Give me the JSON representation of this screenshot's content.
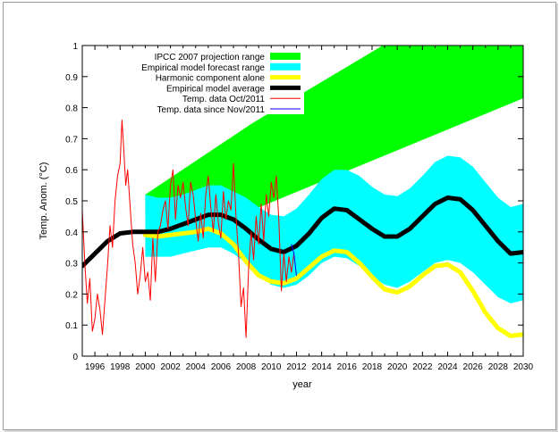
{
  "chart_data": {
    "type": "line",
    "title": "",
    "xlabel": "year",
    "ylabel": "Temp. Anom. (°C)",
    "xlim": [
      1995,
      2030
    ],
    "ylim": [
      0,
      1
    ],
    "x_ticks": [
      "1996",
      "1998",
      "2000",
      "2002",
      "2004",
      "2006",
      "2008",
      "2010",
      "2012",
      "2014",
      "2016",
      "2018",
      "2020",
      "2022",
      "2024",
      "2026",
      "2028",
      "2030"
    ],
    "y_ticks": [
      "0",
      "0.1",
      "0.2",
      "0.3",
      "0.4",
      "0.5",
      "0.6",
      "0.7",
      "0.8",
      "0.9",
      "1"
    ],
    "grid": false,
    "legend_position": "top-left",
    "legend": [
      {
        "label": "IPCC 2007 projection range",
        "color": "#00ff00",
        "style": "band"
      },
      {
        "label": "Empirical model forecast range",
        "color": "#00ffff",
        "style": "band"
      },
      {
        "label": "Harmonic component alone",
        "color": "#ffff00",
        "style": "thick-line"
      },
      {
        "label": "Empirical model average",
        "color": "#000000",
        "style": "thick-line"
      },
      {
        "label": "Temp. data Oct/2011",
        "color": "#ff0000",
        "style": "line"
      },
      {
        "label": "Temp. data since Nov/2011",
        "color": "#0000ff",
        "style": "line"
      }
    ],
    "series": [
      {
        "name": "IPCC 2007 projection range",
        "kind": "band",
        "x": [
          2000,
          2008.5,
          2030
        ],
        "lower": [
          0.45,
          0.47,
          0.83
        ],
        "upper": [
          0.52,
          0.75,
          1.27
        ]
      },
      {
        "name": "Empirical model average",
        "kind": "line",
        "x": [
          1995,
          1996,
          1997,
          1998,
          1999,
          2000,
          2001,
          2002,
          2003,
          2004,
          2005,
          2006,
          2007,
          2008,
          2009,
          2010,
          2011,
          2012,
          2013,
          2014,
          2015,
          2016,
          2017,
          2018,
          2019,
          2020,
          2021,
          2022,
          2023,
          2024,
          2025,
          2026,
          2027,
          2028,
          2029,
          2030
        ],
        "y": [
          0.29,
          0.33,
          0.37,
          0.395,
          0.4,
          0.4,
          0.4,
          0.41,
          0.425,
          0.44,
          0.455,
          0.455,
          0.44,
          0.41,
          0.375,
          0.345,
          0.335,
          0.355,
          0.395,
          0.445,
          0.475,
          0.47,
          0.44,
          0.41,
          0.385,
          0.385,
          0.41,
          0.45,
          0.49,
          0.51,
          0.505,
          0.47,
          0.42,
          0.37,
          0.33,
          0.335
        ]
      },
      {
        "name": "Empirical model forecast range",
        "kind": "band",
        "x": [
          2000,
          2001,
          2002,
          2003,
          2004,
          2005,
          2006,
          2007,
          2008,
          2009,
          2010,
          2011,
          2012,
          2013,
          2014,
          2015,
          2016,
          2017,
          2018,
          2019,
          2020,
          2021,
          2022,
          2023,
          2024,
          2025,
          2026,
          2027,
          2028,
          2029,
          2030
        ],
        "lower": [
          0.32,
          0.32,
          0.32,
          0.33,
          0.34,
          0.35,
          0.35,
          0.33,
          0.3,
          0.26,
          0.23,
          0.22,
          0.23,
          0.26,
          0.3,
          0.32,
          0.315,
          0.29,
          0.255,
          0.23,
          0.22,
          0.24,
          0.27,
          0.3,
          0.31,
          0.3,
          0.27,
          0.23,
          0.19,
          0.17,
          0.18
        ],
        "upper": [
          0.52,
          0.51,
          0.51,
          0.52,
          0.535,
          0.55,
          0.55,
          0.53,
          0.51,
          0.48,
          0.455,
          0.45,
          0.475,
          0.52,
          0.57,
          0.6,
          0.6,
          0.58,
          0.545,
          0.52,
          0.515,
          0.54,
          0.58,
          0.625,
          0.645,
          0.64,
          0.61,
          0.56,
          0.51,
          0.48,
          0.49
        ]
      },
      {
        "name": "Harmonic component alone",
        "kind": "line",
        "x": [
          2000,
          2001,
          2002,
          2003,
          2004,
          2005,
          2006,
          2007,
          2008,
          2009,
          2010,
          2011,
          2012,
          2013,
          2014,
          2015,
          2016,
          2017,
          2018,
          2019,
          2020,
          2021,
          2022,
          2023,
          2024,
          2025,
          2026,
          2027,
          2028,
          2029,
          2030
        ],
        "y": [
          0.39,
          0.385,
          0.39,
          0.395,
          0.4,
          0.41,
          0.395,
          0.36,
          0.305,
          0.26,
          0.24,
          0.235,
          0.25,
          0.285,
          0.32,
          0.34,
          0.335,
          0.3,
          0.255,
          0.215,
          0.205,
          0.225,
          0.26,
          0.29,
          0.295,
          0.27,
          0.21,
          0.14,
          0.09,
          0.065,
          0.07
        ]
      },
      {
        "name": "Temp. data Oct/2011",
        "kind": "line",
        "x": [
          1995.0,
          1995.2,
          1995.4,
          1995.6,
          1995.8,
          1996.0,
          1996.2,
          1996.4,
          1996.6,
          1996.8,
          1997.0,
          1997.2,
          1997.4,
          1997.6,
          1997.8,
          1998.0,
          1998.15,
          1998.3,
          1998.45,
          1998.6,
          1998.8,
          1999.0,
          1999.2,
          1999.4,
          1999.6,
          1999.8,
          2000.0,
          2000.2,
          2000.4,
          2000.6,
          2000.8,
          2001.0,
          2001.2,
          2001.4,
          2001.6,
          2001.8,
          2002.0,
          2002.2,
          2002.4,
          2002.6,
          2002.8,
          2003.0,
          2003.2,
          2003.4,
          2003.6,
          2003.8,
          2004.0,
          2004.2,
          2004.4,
          2004.6,
          2004.8,
          2005.0,
          2005.2,
          2005.4,
          2005.6,
          2005.8,
          2006.0,
          2006.2,
          2006.4,
          2006.6,
          2006.8,
          2007.0,
          2007.2,
          2007.4,
          2007.6,
          2007.8,
          2008.0,
          2008.2,
          2008.4,
          2008.6,
          2008.8,
          2009.0,
          2009.2,
          2009.4,
          2009.6,
          2009.8,
          2010.0,
          2010.2,
          2010.4,
          2010.6,
          2010.8,
          2011.0,
          2011.2,
          2011.4,
          2011.6,
          2011.8
        ],
        "y": [
          0.47,
          0.3,
          0.17,
          0.25,
          0.08,
          0.12,
          0.2,
          0.15,
          0.07,
          0.18,
          0.29,
          0.42,
          0.35,
          0.5,
          0.58,
          0.62,
          0.76,
          0.66,
          0.55,
          0.6,
          0.48,
          0.36,
          0.3,
          0.2,
          0.26,
          0.35,
          0.24,
          0.27,
          0.18,
          0.38,
          0.24,
          0.4,
          0.42,
          0.47,
          0.5,
          0.41,
          0.55,
          0.6,
          0.44,
          0.55,
          0.51,
          0.56,
          0.48,
          0.42,
          0.56,
          0.52,
          0.44,
          0.37,
          0.46,
          0.38,
          0.52,
          0.58,
          0.48,
          0.4,
          0.52,
          0.43,
          0.38,
          0.53,
          0.44,
          0.5,
          0.47,
          0.62,
          0.45,
          0.33,
          0.16,
          0.22,
          0.06,
          0.28,
          0.4,
          0.31,
          0.45,
          0.36,
          0.49,
          0.37,
          0.52,
          0.45,
          0.56,
          0.51,
          0.58,
          0.44,
          0.21,
          0.33,
          0.24,
          0.32,
          0.27,
          0.33
        ]
      },
      {
        "name": "Temp. data since Nov/2011",
        "kind": "line",
        "x": [
          2011.6,
          2011.8,
          2012.0
        ],
        "y": [
          0.36,
          0.33,
          0.26
        ]
      }
    ]
  }
}
